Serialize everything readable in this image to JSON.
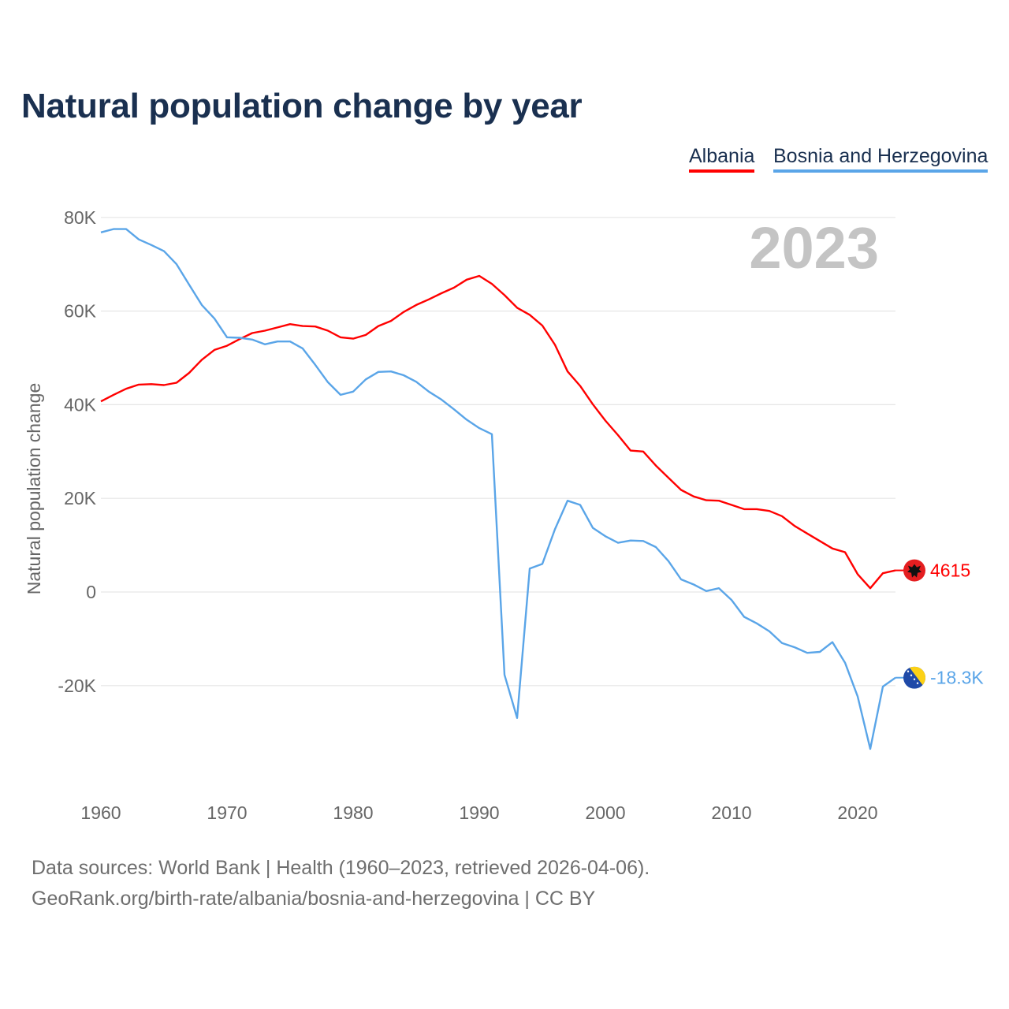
{
  "title": "Natural population change by year",
  "legend": [
    {
      "label": "Albania",
      "color": "#ff0000"
    },
    {
      "label": "Bosnia and Herzegovina",
      "color": "#5aa5e8"
    }
  ],
  "footer": {
    "line1": "Data sources: World Bank | Health (1960–2023, retrieved 2026-04-06).",
    "line2": "GeoRank.org/birth-rate/albania/bosnia-and-herzegovina | CC BY"
  },
  "chart_data": {
    "type": "line",
    "title": "Natural population change by year",
    "xlabel": "",
    "ylabel": "Natural population change",
    "year_watermark": "2023",
    "xlim": [
      1960,
      2023
    ],
    "ylim": [
      -35000,
      80000
    ],
    "x_ticks": [
      1960,
      1970,
      1980,
      1990,
      2000,
      2010,
      2020
    ],
    "y_ticks": [
      {
        "value": 80000,
        "label": "80K"
      },
      {
        "value": 60000,
        "label": "60K"
      },
      {
        "value": 40000,
        "label": "40K"
      },
      {
        "value": 20000,
        "label": "20K"
      },
      {
        "value": 0,
        "label": "0"
      },
      {
        "value": -20000,
        "label": "-20K"
      }
    ],
    "grid": true,
    "legend_position": "top-right",
    "x_start": 1960,
    "series": [
      {
        "name": "Albania",
        "color": "#ff0000",
        "end_label": "4615",
        "flag": "albania-flag-icon",
        "values": [
          40700,
          42100,
          43400,
          44300,
          44400,
          44200,
          44700,
          46800,
          49600,
          51700,
          52600,
          54000,
          55300,
          55800,
          56500,
          57200,
          56800,
          56700,
          55800,
          54400,
          54100,
          54900,
          56800,
          57900,
          59800,
          61300,
          62500,
          63800,
          65000,
          66700,
          67500,
          65800,
          63400,
          60700,
          59200,
          56900,
          52800,
          47100,
          44000,
          40100,
          36600,
          33500,
          30200,
          30000,
          27000,
          24400,
          21800,
          20400,
          19600,
          19500,
          18600,
          17700,
          17700,
          17300,
          16200,
          14100,
          12500,
          10900,
          9300,
          8500,
          3800,
          800,
          4000,
          4615
        ]
      },
      {
        "name": "Bosnia and Herzegovina",
        "color": "#5aa5e8",
        "end_label": "-18.3K",
        "flag": "bosnia-flag-icon",
        "values": [
          76800,
          77500,
          77500,
          75300,
          74100,
          72800,
          70000,
          65600,
          61300,
          58400,
          54400,
          54300,
          53900,
          52900,
          53500,
          53500,
          52000,
          48500,
          44800,
          42100,
          42800,
          45400,
          47000,
          47100,
          46300,
          44900,
          42800,
          41100,
          39000,
          36800,
          35000,
          33700,
          -17700,
          -26900,
          5000,
          6000,
          13400,
          19500,
          18600,
          13700,
          11900,
          10500,
          11000,
          10900,
          9600,
          6600,
          2700,
          1600,
          200,
          800,
          -1700,
          -5300,
          -6700,
          -8400,
          -10900,
          -11800,
          -13000,
          -12800,
          -10700,
          -15100,
          -22300,
          -33500,
          -20200,
          -18300
        ]
      }
    ]
  }
}
